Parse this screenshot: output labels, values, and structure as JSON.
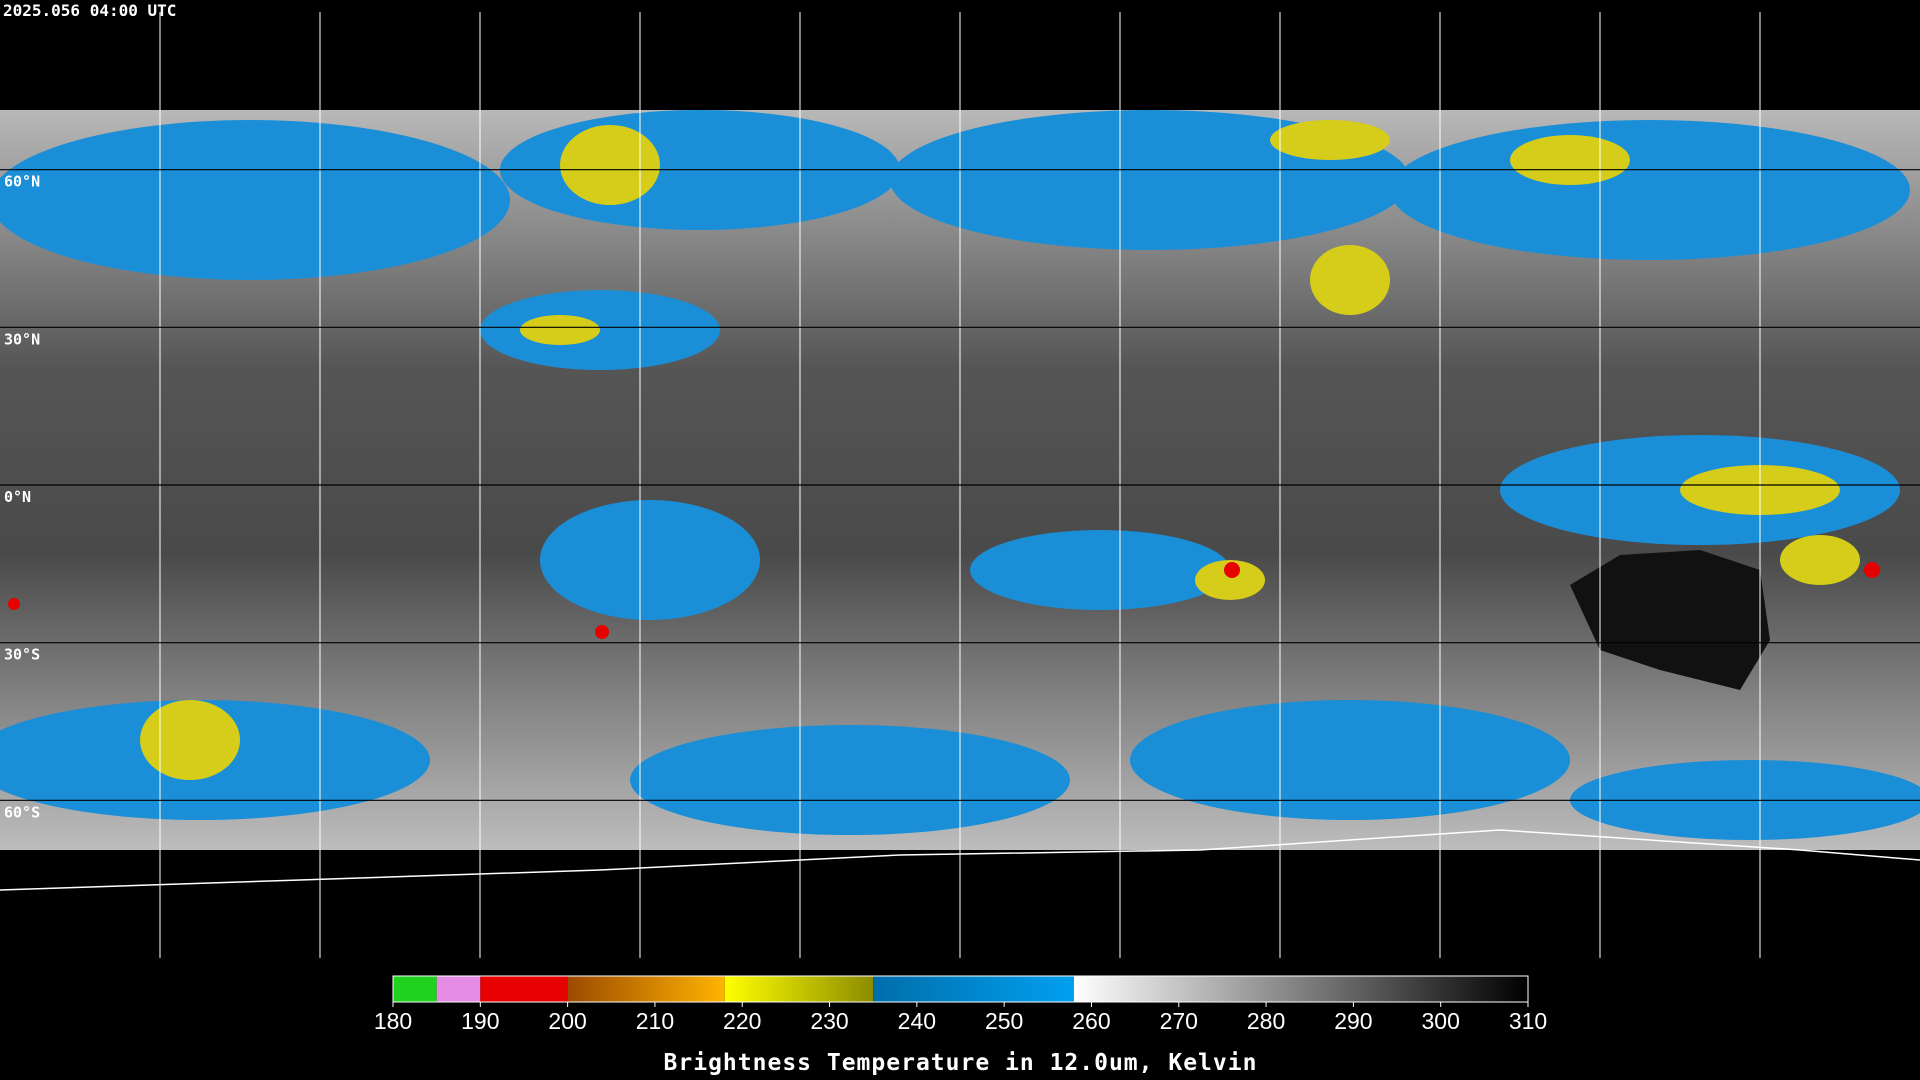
{
  "timestamp": "2025.056 04:00 UTC",
  "lat_lines": [
    {
      "value": 60,
      "label": "60°N"
    },
    {
      "value": 30,
      "label": "30°N"
    },
    {
      "value": 0,
      "label": "0°N"
    },
    {
      "value": -30,
      "label": "30°S"
    },
    {
      "value": -60,
      "label": "60°S"
    }
  ],
  "colorbar": {
    "label": "Brightness Temperature in 12.0um, Kelvin",
    "lim": [
      180,
      310
    ],
    "ticks": [
      180,
      190,
      200,
      210,
      220,
      230,
      240,
      250,
      260,
      270,
      280,
      290,
      300,
      310
    ],
    "segments": [
      {
        "from": 180,
        "to": 185,
        "colors": [
          "#1ed21e",
          "#1ed21e"
        ]
      },
      {
        "from": 185,
        "to": 190,
        "colors": [
          "#e48ce4",
          "#e48ce4"
        ]
      },
      {
        "from": 190,
        "to": 200,
        "colors": [
          "#e60000",
          "#e60000"
        ]
      },
      {
        "from": 200,
        "to": 218,
        "colors": [
          "#9c4a00",
          "#ffb400"
        ]
      },
      {
        "from": 218,
        "to": 235,
        "colors": [
          "#ffff00",
          "#8c8c00"
        ]
      },
      {
        "from": 235,
        "to": 258,
        "colors": [
          "#006eaa",
          "#00a0f0"
        ]
      },
      {
        "from": 258,
        "to": 310,
        "colors": [
          "#ffffff",
          "#000000"
        ]
      }
    ]
  }
}
